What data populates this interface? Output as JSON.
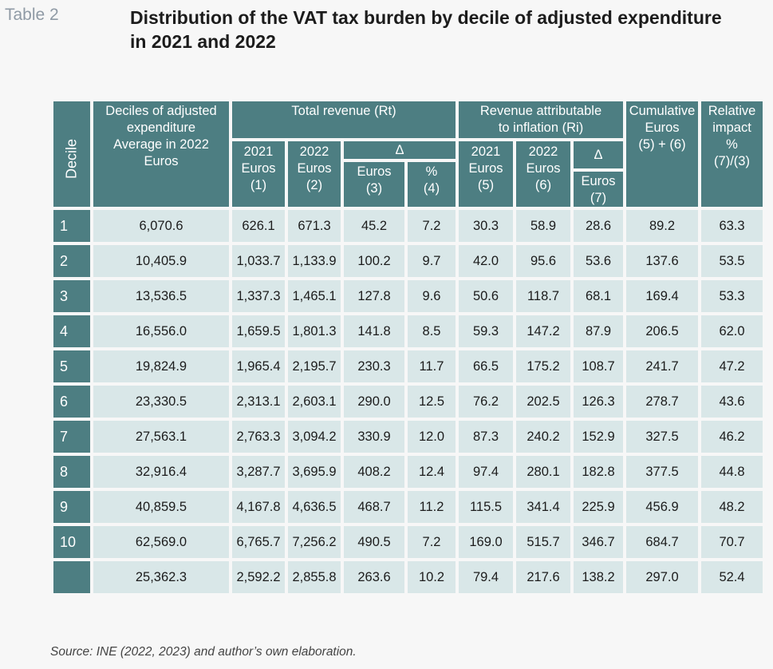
{
  "table_label": "Table 2",
  "title": "Distribution of the VAT tax burden by decile of adjusted expenditure in 2021 and 2022",
  "header": {
    "decile": "Decile",
    "deciles_adj": [
      "Deciles of adjusted",
      "expenditure",
      "Average in 2022",
      "Euros"
    ],
    "total_revenue": "Total revenue (Rt)",
    "attributable": [
      "Revenue attributable",
      "to inflation (Ri)"
    ],
    "cumulative": [
      "Cumulative",
      "Euros",
      "(5) + (6)"
    ],
    "relative": [
      "Relative",
      "impact",
      "%",
      "(7)/(3)"
    ],
    "rt_2021": [
      "2021",
      "Euros",
      "(1)"
    ],
    "rt_2022": [
      "2022",
      "Euros",
      "(2)"
    ],
    "delta": "Δ",
    "rt_delta_euros": [
      "Euros",
      "(3)"
    ],
    "rt_delta_pct": [
      "%",
      "(4)"
    ],
    "ri_2021": [
      "2021",
      "Euros",
      "(5)"
    ],
    "ri_2022": [
      "2022",
      "Euros",
      "(6)"
    ],
    "ri_delta_euros": [
      "Euros",
      "(7)"
    ]
  },
  "rows": [
    [
      "1",
      "6,070.6",
      "626.1",
      "671.3",
      "45.2",
      "7.2",
      "30.3",
      "58.9",
      "28.6",
      "89.2",
      "63.3"
    ],
    [
      "2",
      "10,405.9",
      "1,033.7",
      "1,133.9",
      "100.2",
      "9.7",
      "42.0",
      "95.6",
      "53.6",
      "137.6",
      "53.5"
    ],
    [
      "3",
      "13,536.5",
      "1,337.3",
      "1,465.1",
      "127.8",
      "9.6",
      "50.6",
      "118.7",
      "68.1",
      "169.4",
      "53.3"
    ],
    [
      "4",
      "16,556.0",
      "1,659.5",
      "1,801.3",
      "141.8",
      "8.5",
      "59.3",
      "147.2",
      "87.9",
      "206.5",
      "62.0"
    ],
    [
      "5",
      "19,824.9",
      "1,965.4",
      "2,195.7",
      "230.3",
      "11.7",
      "66.5",
      "175.2",
      "108.7",
      "241.7",
      "47.2"
    ],
    [
      "6",
      "23,330.5",
      "2,313.1",
      "2,603.1",
      "290.0",
      "12.5",
      "76.2",
      "202.5",
      "126.3",
      "278.7",
      "43.6"
    ],
    [
      "7",
      "27,563.1",
      "2,763.3",
      "3,094.2",
      "330.9",
      "12.0",
      "87.3",
      "240.2",
      "152.9",
      "327.5",
      "46.2"
    ],
    [
      "8",
      "32,916.4",
      "3,287.7",
      "3,695.9",
      "408.2",
      "12.4",
      "97.4",
      "280.1",
      "182.8",
      "377.5",
      "44.8"
    ],
    [
      "9",
      "40,859.5",
      "4,167.8",
      "4,636.5",
      "468.7",
      "11.2",
      "115.5",
      "341.4",
      "225.9",
      "456.9",
      "48.2"
    ],
    [
      "10",
      "62,569.0",
      "6,765.7",
      "7,256.2",
      "490.5",
      "7.2",
      "169.0",
      "515.7",
      "346.7",
      "684.7",
      "70.7"
    ],
    [
      "",
      "25,362.3",
      "2,592.2",
      "2,855.8",
      "263.6",
      "10.2",
      "79.4",
      "217.6",
      "138.2",
      "297.0",
      "52.4"
    ]
  ],
  "source": "Source: INE (2022, 2023) and author’s own elaboration."
}
